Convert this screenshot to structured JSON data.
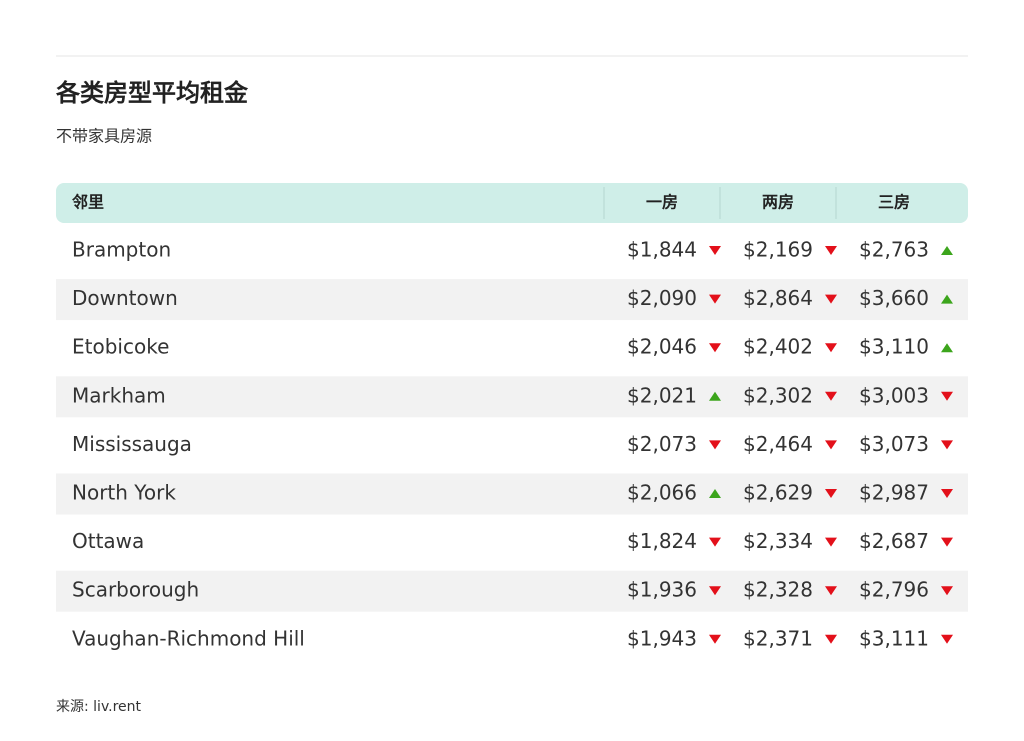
{
  "header": {
    "title": "各类房型平均租金",
    "subtitle": "不带家具房源"
  },
  "table": {
    "columns": [
      "邻里",
      "一房",
      "两房",
      "三房"
    ],
    "rows": [
      {
        "name": "Brampton",
        "cells": [
          {
            "value": "$1,844",
            "trend": "down"
          },
          {
            "value": "$2,169",
            "trend": "down"
          },
          {
            "value": "$2,763",
            "trend": "up"
          }
        ]
      },
      {
        "name": "Downtown",
        "cells": [
          {
            "value": "$2,090",
            "trend": "down"
          },
          {
            "value": "$2,864",
            "trend": "down"
          },
          {
            "value": "$3,660",
            "trend": "up"
          }
        ]
      },
      {
        "name": "Etobicoke",
        "cells": [
          {
            "value": "$2,046",
            "trend": "down"
          },
          {
            "value": "$2,402",
            "trend": "down"
          },
          {
            "value": "$3,110",
            "trend": "up"
          }
        ]
      },
      {
        "name": "Markham",
        "cells": [
          {
            "value": "$2,021",
            "trend": "up"
          },
          {
            "value": "$2,302",
            "trend": "down"
          },
          {
            "value": "$3,003",
            "trend": "down"
          }
        ]
      },
      {
        "name": "Mississauga",
        "cells": [
          {
            "value": "$2,073",
            "trend": "down"
          },
          {
            "value": "$2,464",
            "trend": "down"
          },
          {
            "value": "$3,073",
            "trend": "down"
          }
        ]
      },
      {
        "name": "North York",
        "cells": [
          {
            "value": "$2,066",
            "trend": "up"
          },
          {
            "value": "$2,629",
            "trend": "down"
          },
          {
            "value": "$2,987",
            "trend": "down"
          }
        ]
      },
      {
        "name": "Ottawa",
        "cells": [
          {
            "value": "$1,824",
            "trend": "down"
          },
          {
            "value": "$2,334",
            "trend": "down"
          },
          {
            "value": "$2,687",
            "trend": "down"
          }
        ]
      },
      {
        "name": "Scarborough",
        "cells": [
          {
            "value": "$1,936",
            "trend": "down"
          },
          {
            "value": "$2,328",
            "trend": "down"
          },
          {
            "value": "$2,796",
            "trend": "down"
          }
        ]
      },
      {
        "name": "Vaughan-Richmond Hill",
        "cells": [
          {
            "value": "$1,943",
            "trend": "down"
          },
          {
            "value": "$2,371",
            "trend": "down"
          },
          {
            "value": "$3,111",
            "trend": "down"
          }
        ]
      }
    ]
  },
  "footer": {
    "source": "来源: liv.rent"
  }
}
